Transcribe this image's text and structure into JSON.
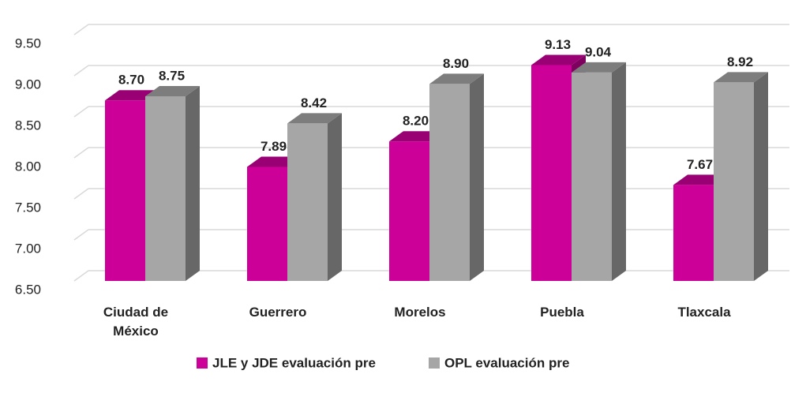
{
  "chart_data": {
    "type": "bar3d",
    "categories": [
      "Ciudad de México",
      "Guerrero",
      "Morelos",
      "Puebla",
      "Tlaxcala"
    ],
    "series": [
      {
        "name": "JLE y JDE evaluación pre",
        "color": "#cc0099",
        "values": [
          8.7,
          7.89,
          8.2,
          9.13,
          7.67
        ],
        "value_labels": [
          "8.70",
          "7.89",
          "8.20",
          "9.13",
          "7.67"
        ]
      },
      {
        "name": "OPL evaluación pre",
        "color": "#a6a6a6",
        "values": [
          8.75,
          8.42,
          8.9,
          9.04,
          8.92
        ],
        "value_labels": [
          "8.75",
          "8.42",
          "8.90",
          "9.04",
          "8.92"
        ]
      }
    ],
    "ylim": [
      6.5,
      9.5
    ],
    "yticks": [
      {
        "value": 6.5,
        "label": "6.50"
      },
      {
        "value": 7,
        "label": "7.00"
      },
      {
        "value": 7.5,
        "label": "7.50"
      },
      {
        "value": 8,
        "label": "8.00"
      },
      {
        "value": 8.5,
        "label": "8.50"
      },
      {
        "value": 9,
        "label": "9.00"
      },
      {
        "value": 9.5,
        "label": "9.50"
      }
    ],
    "grid": true
  }
}
